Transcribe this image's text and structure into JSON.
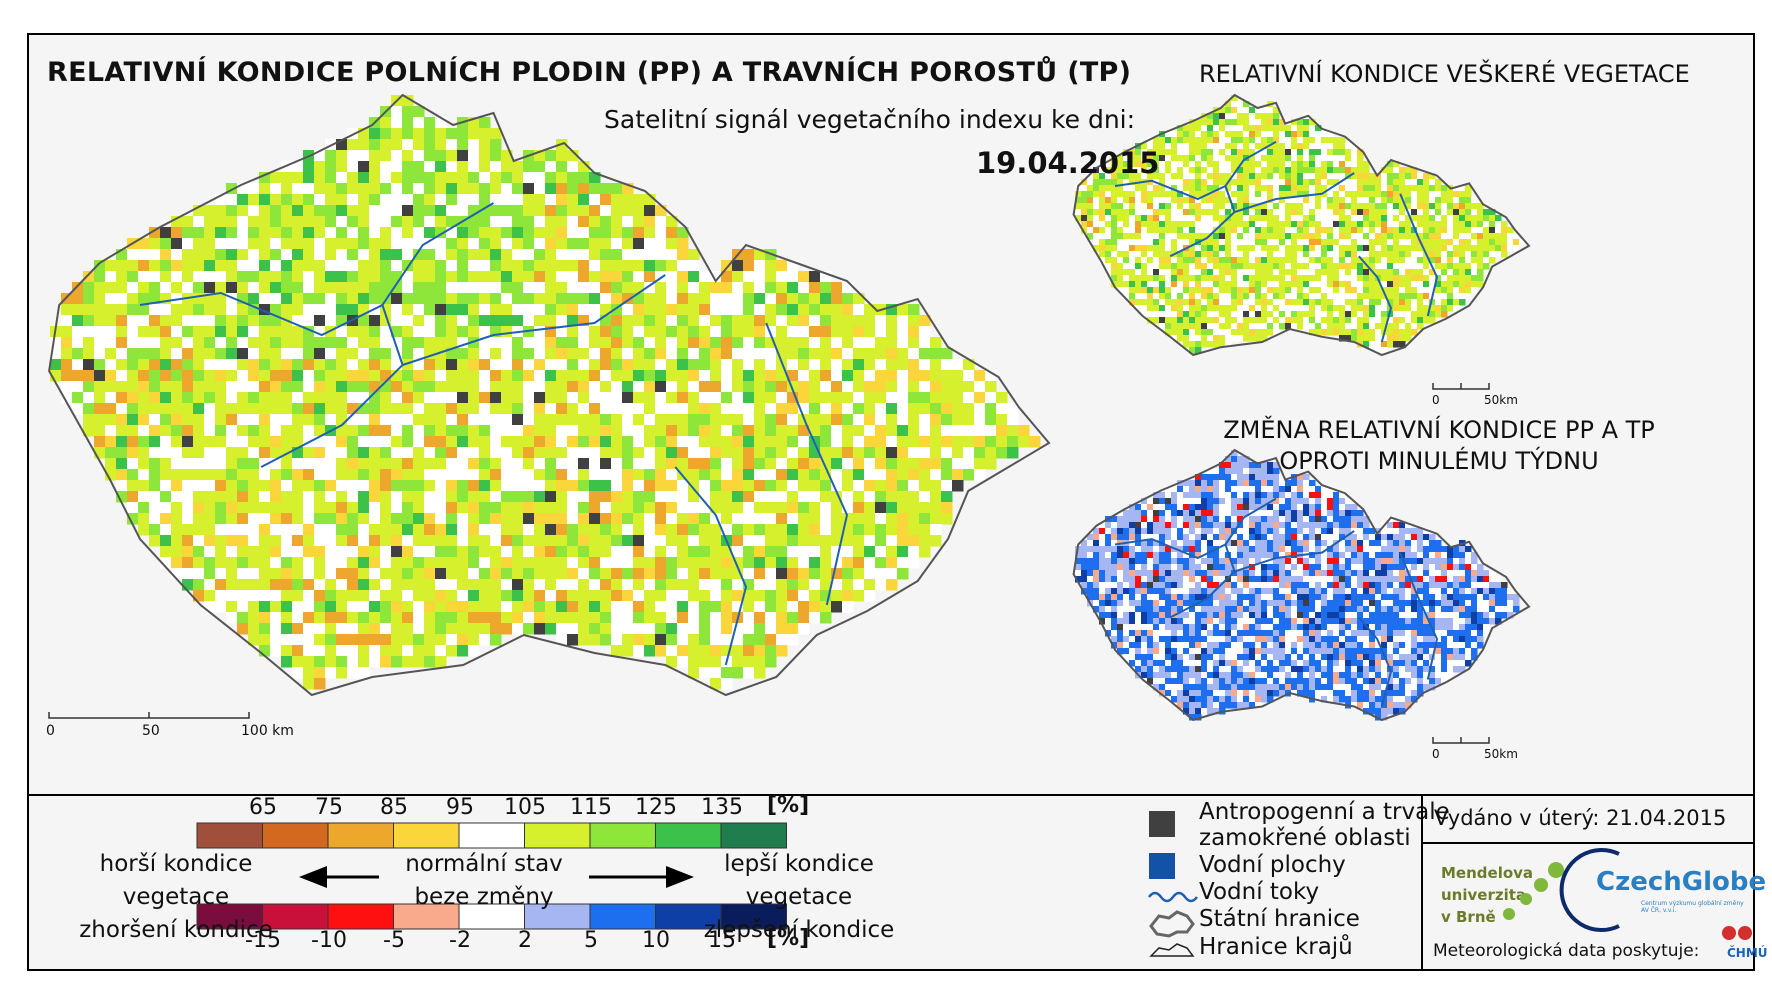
{
  "titles": {
    "main": "RELATIVNÍ KONDICE POLNÍCH PLODIN (PP) A TRAVNÍCH POROSTŮ (TP)",
    "subtitle": "Satelitní signál vegetačního indexu ke dni:",
    "date": "19.04.2015",
    "vegetation": "RELATIVNÍ KONDICE VEŠKERÉ VEGETACE",
    "change_line1": "ZMĚNA RELATIVNÍ KONDICE PP A TP",
    "change_line2": "OPROTI MINULÉMU TÝDNU"
  },
  "scale_bars": {
    "main": [
      "0",
      "50",
      "100 km"
    ],
    "small": [
      "0",
      "50km"
    ]
  },
  "legend": {
    "condition_values": [
      "65",
      "75",
      "85",
      "95",
      "105",
      "115",
      "125",
      "135"
    ],
    "condition_unit": "[%]",
    "condition_colors": [
      "#a0503a",
      "#d2691e",
      "#eca72c",
      "#fbd63a",
      "#ffffff",
      "#d7f02e",
      "#8ee63a",
      "#3cc24a",
      "#1f7d4e"
    ],
    "change_values": [
      "-15",
      "-10",
      "-5",
      "-2",
      "2",
      "5",
      "10",
      "15"
    ],
    "change_unit": "[%]",
    "change_colors": [
      "#7a0c3e",
      "#c8103a",
      "#ff1010",
      "#f9a98c",
      "#ffffff",
      "#a6b6f2",
      "#1e6ff0",
      "#0d3fa6",
      "#0a1c5c"
    ],
    "left_line1": "horší kondice vegetace",
    "left_line2": "zhoršení kondice",
    "mid_line1": "normální stav",
    "mid_line2": "beze změny",
    "right_line1": "lepší kondice vegetace",
    "right_line2": "zlepšení kondice"
  },
  "key": {
    "anthropogenic_line1": "Antropogenní a trvale",
    "anthropogenic_line2": "zamokřené oblasti",
    "water_bodies": "Vodní plochy",
    "rivers": "Vodní toky",
    "state_border": "Státní hranice",
    "region_border": "Hranice krajů"
  },
  "footer": {
    "issued": "Vydáno v úterý: 21.04.2015",
    "mendel_line1": "Mendelova",
    "mendel_line2": "univerzita",
    "mendel_line3": "v Brně",
    "czechglobe": "CzechGlobe",
    "czechglobe_sub": "Centrum výzkumu globální změny AV ČR, v.v.i.",
    "meteo": "Meteorologická data poskytuje:",
    "chmu": "ČHMÚ"
  },
  "colors": {
    "antropogenic": "#404040",
    "water": "#1452a8",
    "river": "#2060b0"
  }
}
